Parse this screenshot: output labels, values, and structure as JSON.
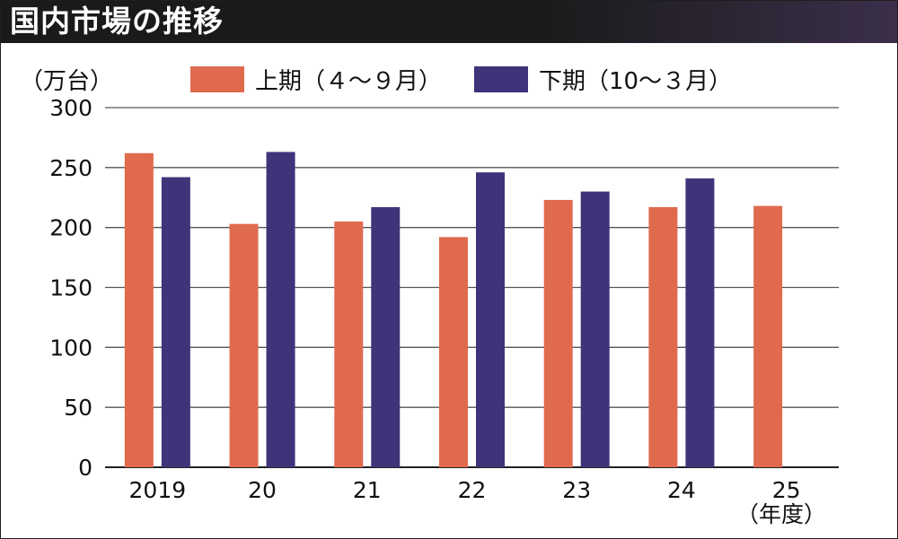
{
  "title": "国内市場の推移",
  "unit_label": "（万台）",
  "colors": {
    "first_half": "#e06a4e",
    "second_half": "#41337a",
    "grid": "#555555"
  },
  "chart_data": {
    "type": "bar",
    "title": "国内市場の推移",
    "ylabel": "（万台）",
    "xlabel": "（年度）",
    "ylim": [
      0,
      300
    ],
    "yticks": [
      "0",
      "50",
      "100",
      "150",
      "200",
      "250",
      "300"
    ],
    "categories": [
      "2019",
      "20",
      "21",
      "22",
      "23",
      "24",
      "25"
    ],
    "series": [
      {
        "name": "上期（４～９月）",
        "values": [
          262,
          203,
          205,
          192,
          223,
          217,
          218
        ]
      },
      {
        "name": "下期（10～３月）",
        "values": [
          242,
          263,
          217,
          246,
          230,
          241,
          null
        ]
      }
    ],
    "grid": true,
    "legend": "top"
  }
}
